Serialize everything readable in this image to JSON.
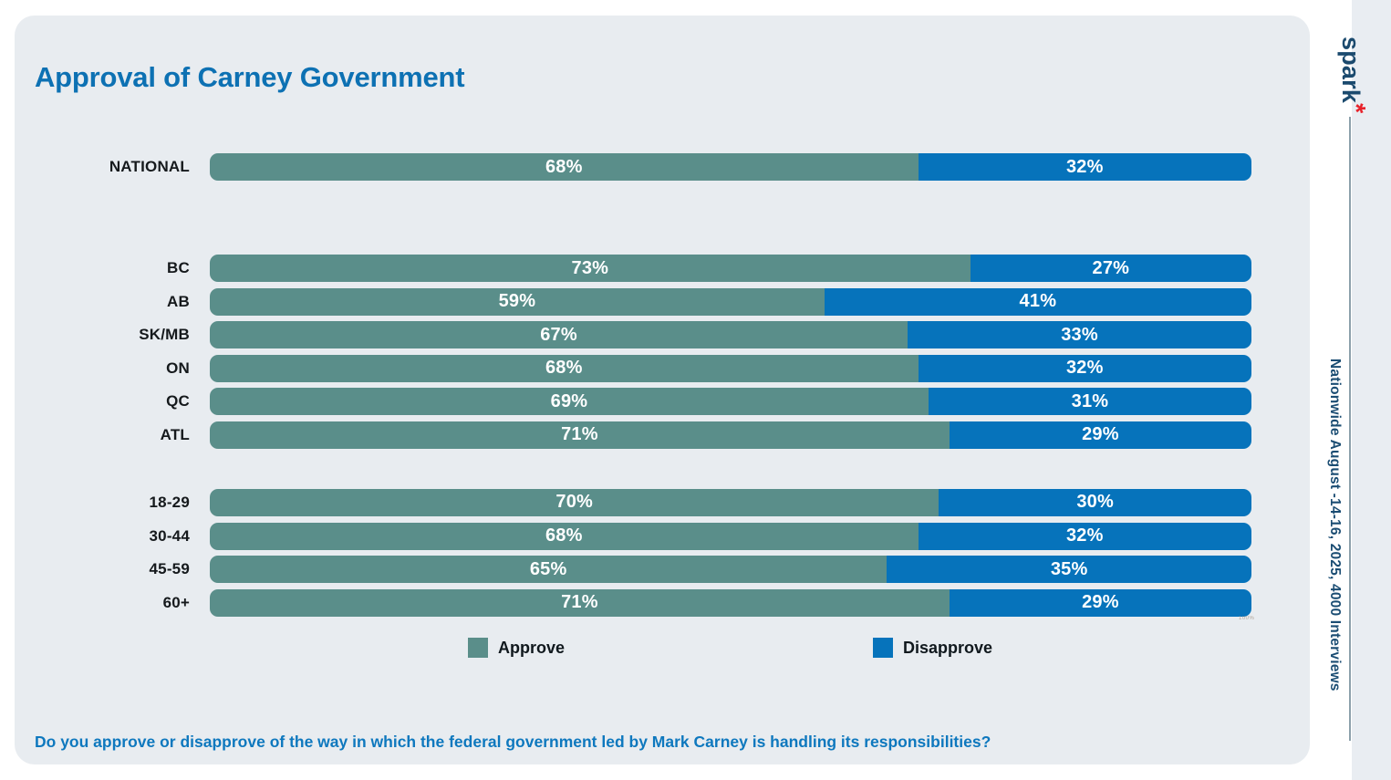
{
  "title": "Approval of Carney Government",
  "brand": {
    "logo_text": "spark",
    "logo_mark": "*"
  },
  "sidebar_note": "Nationwide August -14-16, 2025, 4000 Interviews",
  "question": "Do you approve or disapprove of the way in which the federal government led by Mark Carney is handling its responsibilities?",
  "watermark": "100%",
  "legend": [
    {
      "label": "Approve",
      "color": "#5a8e8a"
    },
    {
      "label": "Disapprove",
      "color": "#0673bb"
    }
  ],
  "colors": {
    "approve": "#5a8e8a",
    "disapprove": "#0673bb",
    "card_bg": "#e8ecf0",
    "title_blue": "#0d71b3",
    "question_blue": "#0e78be",
    "note_navy": "#1b4d73",
    "logo_navy": "#1b4a6e",
    "asterisk_red": "#e8222a"
  },
  "chart_data": {
    "type": "bar",
    "subtype": "horizontal-stacked",
    "value_format": "percent",
    "xlim": [
      0,
      100
    ],
    "series_names": [
      "Approve",
      "Disapprove"
    ],
    "legend_position": "bottom",
    "grid": false,
    "groups": [
      {
        "name": "national",
        "rows": [
          {
            "label": "NATIONAL",
            "approve": 68,
            "disapprove": 32
          }
        ]
      },
      {
        "name": "region",
        "rows": [
          {
            "label": "BC",
            "approve": 73,
            "disapprove": 27
          },
          {
            "label": "AB",
            "approve": 59,
            "disapprove": 41
          },
          {
            "label": "SK/MB",
            "approve": 67,
            "disapprove": 33
          },
          {
            "label": "ON",
            "approve": 68,
            "disapprove": 32
          },
          {
            "label": "QC",
            "approve": 69,
            "disapprove": 31
          },
          {
            "label": "ATL",
            "approve": 71,
            "disapprove": 29
          }
        ]
      },
      {
        "name": "age",
        "rows": [
          {
            "label": "18-29",
            "approve": 70,
            "disapprove": 30
          },
          {
            "label": "30-44",
            "approve": 68,
            "disapprove": 32
          },
          {
            "label": "45-59",
            "approve": 65,
            "disapprove": 35
          },
          {
            "label": "60+",
            "approve": 71,
            "disapprove": 29
          }
        ]
      }
    ]
  }
}
